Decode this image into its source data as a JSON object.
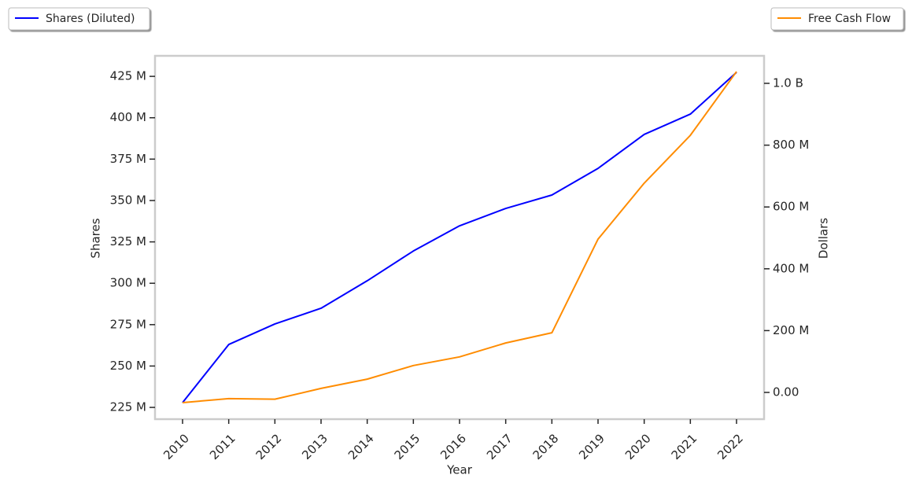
{
  "chart_data": {
    "type": "line",
    "x_label": "Year",
    "y_label": "Shares",
    "y2_label": "Dollars",
    "categories": [
      "2010",
      "2011",
      "2012",
      "2013",
      "2014",
      "2015",
      "2016",
      "2017",
      "2018",
      "2019",
      "2020",
      "2021",
      "2022"
    ],
    "series": [
      {
        "name": "Shares (Diluted)",
        "color": "#0000ff",
        "axis": "y",
        "values": [
          227900000,
          263000000,
          275400000,
          284900000,
          301500000,
          319500000,
          334700000,
          345200000,
          353300000,
          369400000,
          389900000,
          402200000,
          427400000
        ]
      },
      {
        "name": "Free Cash Flow",
        "color": "#ff8c00",
        "axis": "y2",
        "values": [
          -33000000,
          -20000000,
          -22000000,
          13000000,
          43000000,
          87000000,
          115000000,
          160000000,
          193000000,
          496000000,
          677000000,
          832000000,
          1038000000
        ]
      }
    ],
    "ylim": [
      217900000,
      437400000
    ],
    "yticks": [
      {
        "value": 225000000,
        "label": "225 M"
      },
      {
        "value": 250000000,
        "label": "250 M"
      },
      {
        "value": 275000000,
        "label": "275 M"
      },
      {
        "value": 300000000,
        "label": "300 M"
      },
      {
        "value": 325000000,
        "label": "325 M"
      },
      {
        "value": 350000000,
        "label": "350 M"
      },
      {
        "value": 375000000,
        "label": "375 M"
      },
      {
        "value": 400000000,
        "label": "400 M"
      },
      {
        "value": 425000000,
        "label": "425 M"
      }
    ],
    "y2lim": [
      -86500000,
      1089000000
    ],
    "y2ticks": [
      {
        "value": 0,
        "label": "0.00"
      },
      {
        "value": 200000000,
        "label": "200 M"
      },
      {
        "value": 400000000,
        "label": "400 M"
      },
      {
        "value": 600000000,
        "label": "600 M"
      },
      {
        "value": 800000000,
        "label": "800 M"
      },
      {
        "value": 1000000000,
        "label": "1.0 B"
      }
    ],
    "grid": false
  }
}
